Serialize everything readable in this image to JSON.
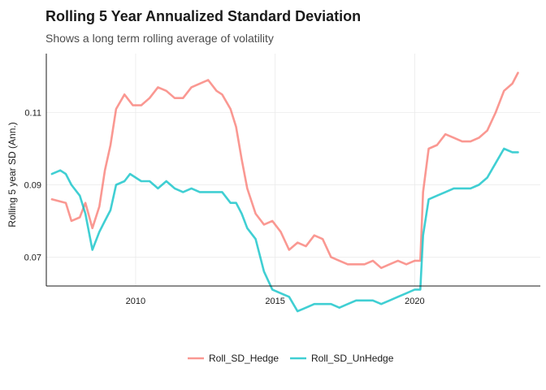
{
  "chart_data": {
    "type": "line",
    "title": "Rolling 5 Year Annualized Standard Deviation",
    "subtitle": "Shows a long term rolling average of volatility",
    "xlabel": "",
    "ylabel": "Rolling 5 year SD (Ann.)",
    "xlim": [
      2006.8,
      2024.5
    ],
    "ylim": [
      0.062,
      0.1263
    ],
    "x_ticks": [
      2010,
      2015,
      2020
    ],
    "x_tick_labels": [
      "2010",
      "2015",
      "2020"
    ],
    "y_ticks": [
      0.07,
      0.09,
      0.11
    ],
    "y_tick_labels": [
      "0.07",
      "0.09",
      "0.11"
    ],
    "grid": true,
    "legend_position": "bottom",
    "series": [
      {
        "name": "Roll_SD_Hedge",
        "color": "#F8766D",
        "x": [
          2007.0,
          2007.5,
          2007.7,
          2008.0,
          2008.2,
          2008.45,
          2008.7,
          2008.9,
          2009.1,
          2009.3,
          2009.6,
          2009.9,
          2010.2,
          2010.5,
          2010.8,
          2011.1,
          2011.4,
          2011.7,
          2012.0,
          2012.3,
          2012.6,
          2012.9,
          2013.1,
          2013.4,
          2013.6,
          2013.8,
          2014.0,
          2014.3,
          2014.6,
          2014.9,
          2015.2,
          2015.5,
          2015.8,
          2016.1,
          2016.4,
          2016.7,
          2017.0,
          2017.3,
          2017.6,
          2017.9,
          2018.2,
          2018.5,
          2018.8,
          2019.1,
          2019.4,
          2019.7,
          2020.0,
          2020.2,
          2020.3,
          2020.5,
          2020.8,
          2021.1,
          2021.4,
          2021.7,
          2022.0,
          2022.3,
          2022.6,
          2022.9,
          2023.2,
          2023.5,
          2023.7
        ],
        "y": [
          0.086,
          0.085,
          0.08,
          0.081,
          0.085,
          0.078,
          0.084,
          0.094,
          0.101,
          0.111,
          0.115,
          0.112,
          0.112,
          0.114,
          0.117,
          0.116,
          0.114,
          0.114,
          0.117,
          0.118,
          0.119,
          0.116,
          0.115,
          0.111,
          0.106,
          0.097,
          0.089,
          0.082,
          0.079,
          0.08,
          0.077,
          0.072,
          0.074,
          0.073,
          0.076,
          0.075,
          0.07,
          0.069,
          0.068,
          0.068,
          0.068,
          0.069,
          0.067,
          0.068,
          0.069,
          0.068,
          0.069,
          0.069,
          0.088,
          0.1,
          0.101,
          0.104,
          0.103,
          0.102,
          0.102,
          0.103,
          0.105,
          0.11,
          0.116,
          0.118,
          0.121
        ]
      },
      {
        "name": "Roll_SD_UnHedge",
        "color": "#00BFC4",
        "x": [
          2007.0,
          2007.3,
          2007.5,
          2007.7,
          2008.0,
          2008.2,
          2008.45,
          2008.7,
          2008.9,
          2009.1,
          2009.3,
          2009.6,
          2009.8,
          2010.2,
          2010.5,
          2010.8,
          2011.1,
          2011.4,
          2011.7,
          2012.0,
          2012.3,
          2012.6,
          2012.9,
          2013.1,
          2013.4,
          2013.6,
          2013.8,
          2014.0,
          2014.3,
          2014.6,
          2014.9,
          2015.2,
          2015.5,
          2015.8,
          2016.1,
          2016.4,
          2016.7,
          2017.0,
          2017.3,
          2017.6,
          2017.9,
          2018.2,
          2018.5,
          2018.8,
          2019.1,
          2019.4,
          2019.7,
          2020.0,
          2020.2,
          2020.3,
          2020.5,
          2020.8,
          2021.1,
          2021.4,
          2021.7,
          2022.0,
          2022.3,
          2022.6,
          2022.9,
          2023.2,
          2023.5,
          2023.7
        ],
        "y": [
          0.093,
          0.094,
          0.093,
          0.09,
          0.087,
          0.082,
          0.072,
          0.077,
          0.08,
          0.083,
          0.09,
          0.091,
          0.093,
          0.091,
          0.091,
          0.089,
          0.091,
          0.089,
          0.088,
          0.089,
          0.088,
          0.088,
          0.088,
          0.088,
          0.085,
          0.085,
          0.082,
          0.078,
          0.075,
          0.066,
          0.061,
          0.06,
          0.059,
          0.055,
          0.056,
          0.057,
          0.057,
          0.057,
          0.056,
          0.057,
          0.058,
          0.058,
          0.058,
          0.057,
          0.058,
          0.059,
          0.06,
          0.061,
          0.061,
          0.076,
          0.086,
          0.087,
          0.088,
          0.089,
          0.089,
          0.089,
          0.09,
          0.092,
          0.096,
          0.1,
          0.099,
          0.099
        ]
      }
    ]
  }
}
